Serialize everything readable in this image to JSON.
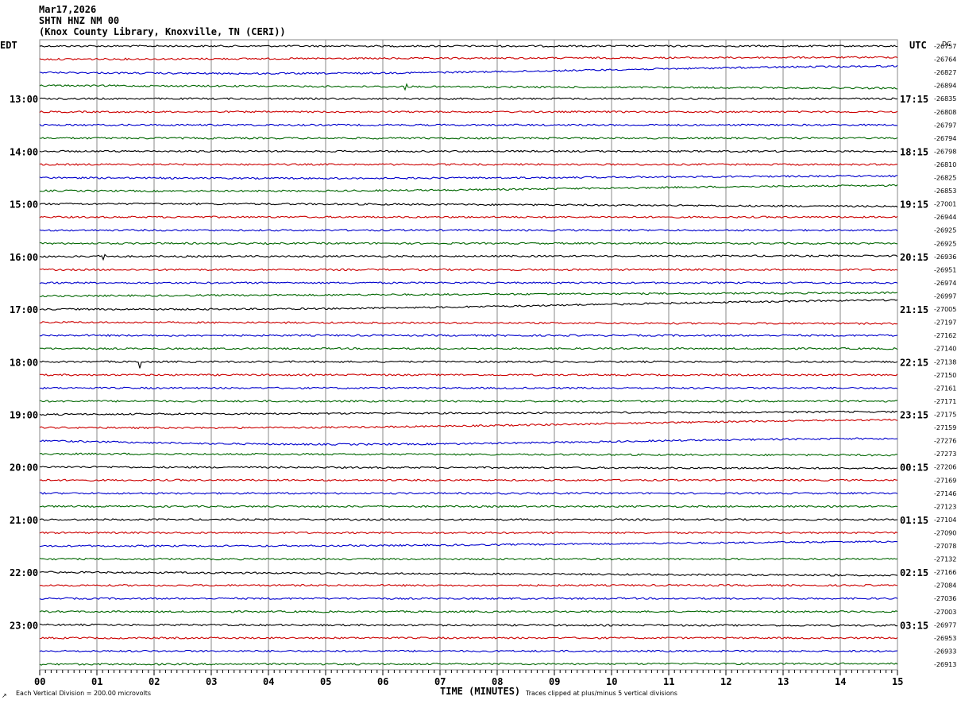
{
  "header": {
    "date": "Mar17,2026",
    "station": "SHTN HNZ NM 00",
    "location": "(Knox County Library, Knoxville, TN (CERI))"
  },
  "labels": {
    "left_zone": "EDT",
    "right_zone": "UTC",
    "dc": "DC",
    "x_axis_title": "TIME (MINUTES)",
    "scale_note": "Each Vertical Division =  200.00 microvolts",
    "clip_note": "Traces clipped at plus/minus 5 vertical divisions"
  },
  "colors": {
    "trace_cycle": [
      "#000000",
      "#cc0000",
      "#0000cc",
      "#006600"
    ],
    "grid": "#888888"
  },
  "chart_data": {
    "type": "line",
    "description_kind": "helicorder",
    "x": [
      0,
      15
    ],
    "xlabel": "TIME (MINUTES)",
    "x_ticks": [
      "00",
      "01",
      "02",
      "03",
      "04",
      "05",
      "06",
      "07",
      "08",
      "09",
      "10",
      "11",
      "12",
      "13",
      "14",
      "15"
    ],
    "rows_per_hour": 4,
    "left_time_labels": [
      "13:00",
      "14:00",
      "15:00",
      "16:00",
      "17:00",
      "18:00",
      "19:00",
      "20:00",
      "21:00",
      "22:00",
      "23:00"
    ],
    "right_time_labels": [
      "17:15",
      "18:15",
      "19:15",
      "20:15",
      "21:15",
      "22:15",
      "23:15",
      "00:15",
      "01:15",
      "02:15",
      "03:15"
    ],
    "dc_offsets": [
      -26757,
      -26764,
      -26827,
      -26894,
      -26835,
      -26808,
      -26797,
      -26794,
      -26798,
      -26810,
      -26825,
      -26853,
      -27001,
      -26944,
      -26925,
      -26925,
      -26936,
      -26951,
      -26974,
      -26997,
      -27005,
      -27197,
      -27162,
      -27140,
      -27138,
      -27150,
      -27161,
      -27171,
      -27175,
      -27159,
      -27276,
      -27273,
      -27206,
      -27169,
      -27146,
      -27123,
      -27104,
      -27090,
      -27078,
      -27132,
      -27166,
      -27084,
      -27036,
      -27003,
      -26977,
      -26953,
      -26933,
      -26913
    ],
    "drift": [
      [
        0,
        0
      ],
      [
        0,
        -0.3
      ],
      [
        0.5,
        -0.6
      ],
      [
        0,
        0.4
      ],
      [
        0,
        0
      ],
      [
        0,
        0
      ],
      [
        0,
        0
      ],
      [
        0,
        0
      ],
      [
        0,
        0
      ],
      [
        0,
        0
      ],
      [
        0.2,
        -0.1
      ],
      [
        0.3,
        -0.6
      ],
      [
        -0.1,
        0.3
      ],
      [
        0,
        0
      ],
      [
        0,
        0
      ],
      [
        0,
        0
      ],
      [
        0,
        -0.1
      ],
      [
        0,
        0
      ],
      [
        0,
        0
      ],
      [
        0,
        -0.5
      ],
      [
        0.4,
        -1.1
      ],
      [
        0,
        0.2
      ],
      [
        0,
        0
      ],
      [
        0,
        0
      ],
      [
        0,
        0
      ],
      [
        0,
        0
      ],
      [
        0,
        0
      ],
      [
        0,
        0
      ],
      [
        0,
        -0.4
      ],
      [
        0.4,
        -0.9
      ],
      [
        0.7,
        0.2
      ],
      [
        0,
        0.2
      ],
      [
        0,
        0.2
      ],
      [
        0,
        0
      ],
      [
        0,
        0
      ],
      [
        0,
        0
      ],
      [
        0,
        0
      ],
      [
        0,
        0
      ],
      [
        0.2,
        -0.5
      ],
      [
        0,
        0
      ],
      [
        0,
        0.5
      ],
      [
        0,
        0
      ],
      [
        0,
        0
      ],
      [
        0,
        0
      ],
      [
        0,
        0.1
      ],
      [
        0,
        0
      ],
      [
        0,
        0
      ],
      [
        0,
        -0.1
      ]
    ],
    "annotations": [
      {
        "row": 16,
        "minute": 1.1,
        "kind": "burst"
      },
      {
        "row": 24,
        "minute": 1.75,
        "kind": "spike"
      },
      {
        "row": 3,
        "minute": 6.4,
        "kind": "spike"
      }
    ]
  }
}
